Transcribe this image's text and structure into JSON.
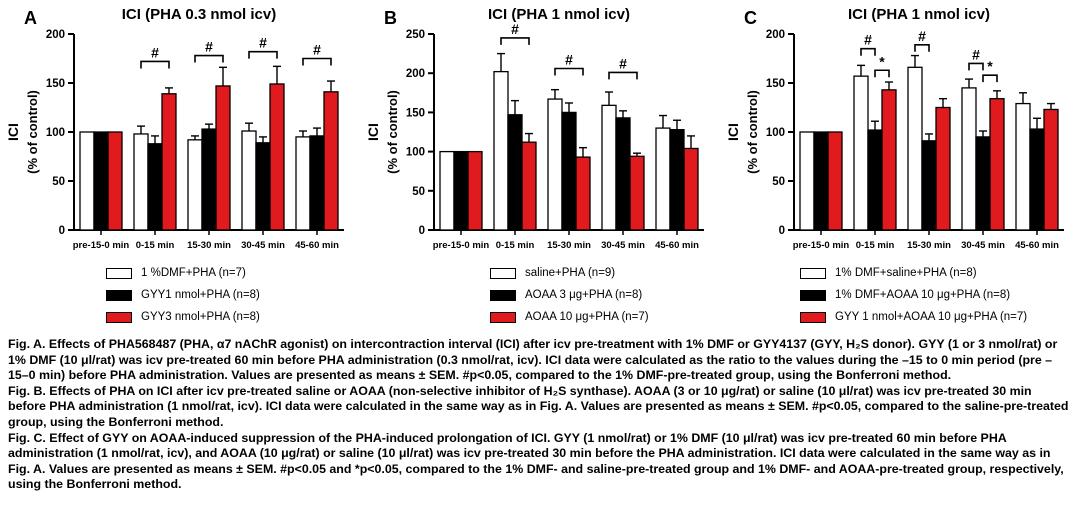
{
  "figure_title": "ICI bar chart figure",
  "chart_data": [
    {
      "type": "bar",
      "panel": "A",
      "title": "ICI (PHA 0.3 nmol icv)",
      "ylabel_line1": "ICI",
      "ylabel_line2": "(% of control)",
      "ylim": [
        0,
        200
      ],
      "yticks": [
        0,
        50,
        100,
        150,
        200
      ],
      "categories": [
        "pre-15-0 min",
        "0-15 min",
        "15-30 min",
        "30-45 min",
        "45-60 min"
      ],
      "series": [
        {
          "name": "1 %DMF+PHA (n=7)",
          "color": "#ffffff",
          "values": [
            100,
            98,
            92,
            101,
            95
          ],
          "errors": [
            0,
            8,
            4,
            8,
            6
          ]
        },
        {
          "name": "GYY1 nmol+PHA (n=8)",
          "color": "#000000",
          "values": [
            100,
            88,
            103,
            89,
            96
          ],
          "errors": [
            0,
            8,
            5,
            6,
            8
          ]
        },
        {
          "name": "GYY3 nmol+PHA (n=8)",
          "color": "#e11a1d",
          "values": [
            100,
            139,
            147,
            149,
            141
          ],
          "errors": [
            0,
            6,
            19,
            18,
            11
          ]
        }
      ],
      "annotations": [
        {
          "group": 1,
          "from": 0,
          "to": 2,
          "label": "#",
          "y": 172
        },
        {
          "group": 2,
          "from": 0,
          "to": 2,
          "label": "#",
          "y": 178
        },
        {
          "group": 3,
          "from": 0,
          "to": 2,
          "label": "#",
          "y": 182
        },
        {
          "group": 4,
          "from": 0,
          "to": 2,
          "label": "#",
          "y": 175
        }
      ]
    },
    {
      "type": "bar",
      "panel": "B",
      "title": "ICI (PHA 1 nmol icv)",
      "ylabel_line1": "ICI",
      "ylabel_line2": "(% of control)",
      "ylim": [
        0,
        250
      ],
      "yticks": [
        0,
        50,
        100,
        150,
        200,
        250
      ],
      "categories": [
        "pre-15-0 min",
        "0-15 min",
        "15-30 min",
        "30-45 min",
        "45-60 min"
      ],
      "series": [
        {
          "name": "saline+PHA (n=9)",
          "color": "#ffffff",
          "values": [
            100,
            202,
            167,
            159,
            130
          ],
          "errors": [
            0,
            23,
            12,
            17,
            16
          ]
        },
        {
          "name": "AOAA 3 μg+PHA (n=8)",
          "color": "#000000",
          "values": [
            100,
            147,
            150,
            143,
            128
          ],
          "errors": [
            0,
            18,
            12,
            9,
            12
          ]
        },
        {
          "name": "AOAA 10 μg+PHA (n=7)",
          "color": "#e11a1d",
          "values": [
            100,
            112,
            93,
            94,
            104
          ],
          "errors": [
            0,
            11,
            12,
            4,
            16
          ]
        }
      ],
      "annotations": [
        {
          "group": 1,
          "from": 0,
          "to": 2,
          "label": "#",
          "y": 245
        },
        {
          "group": 2,
          "from": 0,
          "to": 2,
          "label": "#",
          "y": 206
        },
        {
          "group": 3,
          "from": 0,
          "to": 2,
          "label": "#",
          "y": 201
        }
      ]
    },
    {
      "type": "bar",
      "panel": "C",
      "title": "ICI (PHA 1 nmol icv)",
      "ylabel_line1": "ICI",
      "ylabel_line2": "(% of control)",
      "ylim": [
        0,
        200
      ],
      "yticks": [
        0,
        50,
        100,
        150,
        200
      ],
      "categories": [
        "pre-15-0 min",
        "0-15 min",
        "15-30 min",
        "30-45 min",
        "45-60 min"
      ],
      "series": [
        {
          "name": "1% DMF+saline+PHA (n=8)",
          "color": "#ffffff",
          "values": [
            100,
            157,
            166,
            145,
            129
          ],
          "errors": [
            0,
            11,
            12,
            9,
            11
          ]
        },
        {
          "name": "1% DMF+AOAA 10 μg+PHA (n=8)",
          "color": "#000000",
          "values": [
            100,
            102,
            91,
            95,
            103
          ],
          "errors": [
            0,
            9,
            7,
            6,
            11
          ]
        },
        {
          "name": "GYY 1 nmol+AOAA 10 μg+PHA (n=7)",
          "color": "#e11a1d",
          "values": [
            100,
            143,
            125,
            134,
            123
          ],
          "errors": [
            0,
            8,
            9,
            8,
            6
          ]
        }
      ],
      "annotations": [
        {
          "group": 1,
          "from": 0,
          "to": 1,
          "label": "#",
          "y": 185
        },
        {
          "group": 1,
          "from": 1,
          "to": 2,
          "label": "*",
          "y": 163
        },
        {
          "group": 2,
          "from": 0,
          "to": 1,
          "label": "#",
          "y": 189
        },
        {
          "group": 3,
          "from": 0,
          "to": 1,
          "label": "#",
          "y": 170
        },
        {
          "group": 3,
          "from": 1,
          "to": 2,
          "label": "*",
          "y": 158
        }
      ]
    }
  ],
  "caption": {
    "paragraphs": [
      "Fig. A. Effects of PHA568487 (PHA, α7 nAChR agonist) on intercontraction interval (ICI) after icv pre-treatment with 1% DMF or GYY4137 (GYY, H₂S donor). GYY (1 or 3 nmol/rat) or 1% DMF (10 μl/rat) was icv pre-treated 60 min before PHA administration (0.3 nmol/rat, icv). ICI data were calculated as the ratio to the values during the –15 to 0 min period (pre –15–0 min) before PHA administration. Values are presented as means ± SEM. #p<0.05, compared to the 1% DMF-pre-treated group, using the Bonferroni method.",
      "Fig. B. Effects of PHA on ICI after icv pre-treated saline or AOAA (non-selective inhibitor of H₂S synthase). AOAA (3 or 10 μg/rat) or saline (10 μl/rat) was icv pre-treated 30 min before PHA administration (1 nmol/rat, icv). ICI data were calculated in the same way as in Fig. A. Values are presented as means ± SEM. #p<0.05, compared to the saline-pre-treated group, using the Bonferroni method.",
      "Fig. C. Effect of GYY on AOAA-induced suppression of the PHA-induced prolongation of ICI. GYY (1 nmol/rat) or 1% DMF (10 μl/rat) was icv pre-treated 60 min before PHA administration (1 nmol/rat, icv), and AOAA (10 μg/rat) or saline (10 μl/rat) was icv pre-treated 30 min before the PHA administration. ICI data were calculated in the same way as in Fig. A. Values are presented as means ± SEM. #p<0.05 and *p<0.05, compared to the 1% DMF- and saline-pre-treated group and 1% DMF- and AOAA-pre-treated group, respectively, using the Bonferroni method."
    ]
  },
  "colors": {
    "bar_white": "#ffffff",
    "bar_black": "#000000",
    "bar_red": "#e11a1d",
    "axis": "#000000"
  }
}
